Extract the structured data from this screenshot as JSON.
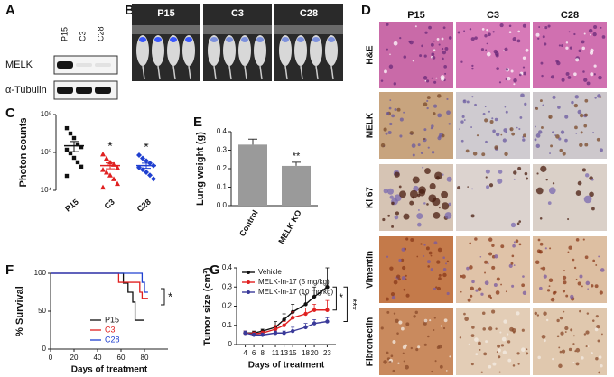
{
  "blot": {
    "letter": "A",
    "lanes": [
      "P15",
      "C3",
      "C28"
    ],
    "rows": [
      "MELK",
      "α-Tubulin"
    ]
  },
  "imaging": {
    "letter": "B",
    "groups": [
      "P15",
      "C3",
      "C28"
    ]
  },
  "histology": {
    "letter": "D",
    "columns": [
      "P15",
      "C3",
      "C28"
    ],
    "rows": [
      "H&E",
      "MELK",
      "Ki 67",
      "Vimentin",
      "Fibronectin"
    ]
  },
  "chart_data": [
    {
      "letter": "C",
      "type": "scatter",
      "ylabel": "Photon counts",
      "log_y": true,
      "ylim": [
        10000,
        1000000
      ],
      "yticks": [
        {
          "value": 10000,
          "label": "10⁴"
        },
        {
          "value": 100000,
          "label": "10⁵"
        },
        {
          "value": 1000000,
          "label": "10⁶"
        }
      ],
      "groups": [
        {
          "name": "P15",
          "color": "#111111",
          "marker": "square",
          "values": [
            436000,
            316000,
            240000,
            163000,
            138000,
            118000,
            95000,
            72000,
            55000,
            42000,
            24000
          ],
          "mean": 150000,
          "sem": 45000
        },
        {
          "name": "C3",
          "color": "#e02020",
          "marker": "triangle",
          "values": [
            90000,
            70000,
            55000,
            48000,
            40000,
            35000,
            30000,
            25000,
            20000,
            15000,
            12000
          ],
          "mean": 45000,
          "sem": 8000,
          "annotation": "*"
        },
        {
          "name": "C28",
          "color": "#2040d0",
          "marker": "diamond",
          "values": [
            85000,
            70000,
            60000,
            52000,
            45000,
            40000,
            35000,
            30000,
            25000,
            20000
          ],
          "mean": 45000,
          "sem": 7000,
          "annotation": "*"
        }
      ]
    },
    {
      "letter": "E",
      "type": "bar",
      "ylabel": "Lung weight (g)",
      "color": "#9a9a9a",
      "categories": [
        "Control",
        "MELK KO"
      ],
      "values": [
        0.33,
        0.215
      ],
      "errors": [
        0.03,
        0.02
      ],
      "annotations": [
        null,
        "**"
      ],
      "ylim": [
        0,
        0.4
      ],
      "yticks": [
        {
          "value": 0,
          "label": "0.0"
        },
        0.1,
        0.2,
        0.3,
        0.4
      ]
    },
    {
      "letter": "F",
      "type": "step",
      "xlabel": "Days of treatment",
      "ylabel": "% Survival",
      "xlim": [
        0,
        100
      ],
      "xticks": [
        0,
        20,
        40,
        60,
        80
      ],
      "ylim": [
        0,
        100
      ],
      "yticks": [
        0,
        50,
        100
      ],
      "annotation": "*",
      "series": [
        {
          "name": "P15",
          "color": "#111111",
          "x": [
            0,
            62,
            66,
            70,
            72,
            80
          ],
          "values": [
            100,
            87,
            75,
            62,
            38,
            38
          ]
        },
        {
          "name": "C3",
          "color": "#e02020",
          "x": [
            0,
            58,
            76,
            78,
            83
          ],
          "values": [
            100,
            88,
            75,
            67,
            67
          ]
        },
        {
          "name": "C28",
          "color": "#2040d0",
          "x": [
            0,
            78,
            80,
            83
          ],
          "values": [
            100,
            88,
            75,
            75
          ]
        }
      ]
    },
    {
      "letter": "G",
      "type": "line",
      "xlabel": "Days of treatment",
      "ylabel": "Tumor size (cm³)",
      "xlim": [
        2,
        25
      ],
      "xticks": [
        4,
        6,
        8,
        11,
        13,
        15,
        18,
        20,
        23
      ],
      "ylim": [
        0,
        0.4
      ],
      "yticks": [
        0,
        0.1,
        0.2,
        0.3,
        0.4
      ],
      "annotations": [
        "*",
        "***"
      ],
      "x": [
        4,
        6,
        8,
        11,
        13,
        15,
        18,
        20,
        23
      ],
      "series": [
        {
          "name": "Vehicle",
          "color": "#111111",
          "values": [
            0.06,
            0.06,
            0.07,
            0.09,
            0.13,
            0.17,
            0.21,
            0.25,
            0.3
          ],
          "errors": [
            0.01,
            0.01,
            0.01,
            0.03,
            0.03,
            0.04,
            0.05,
            0.05,
            0.1
          ]
        },
        {
          "name": "MELK-In-17 (5 mg/kg)",
          "color": "#e02020",
          "values": [
            0.06,
            0.055,
            0.06,
            0.08,
            0.1,
            0.14,
            0.16,
            0.18,
            0.18
          ],
          "errors": [
            0.01,
            0.01,
            0.01,
            0.02,
            0.02,
            0.03,
            0.03,
            0.03,
            0.05
          ]
        },
        {
          "name": "MELK-In-17 (10 mg/kg)",
          "color": "#3a3a9a",
          "values": [
            0.06,
            0.05,
            0.05,
            0.06,
            0.06,
            0.07,
            0.09,
            0.11,
            0.12
          ],
          "errors": [
            0.01,
            0.01,
            0.01,
            0.01,
            0.01,
            0.02,
            0.02,
            0.02,
            0.02
          ]
        }
      ]
    }
  ]
}
